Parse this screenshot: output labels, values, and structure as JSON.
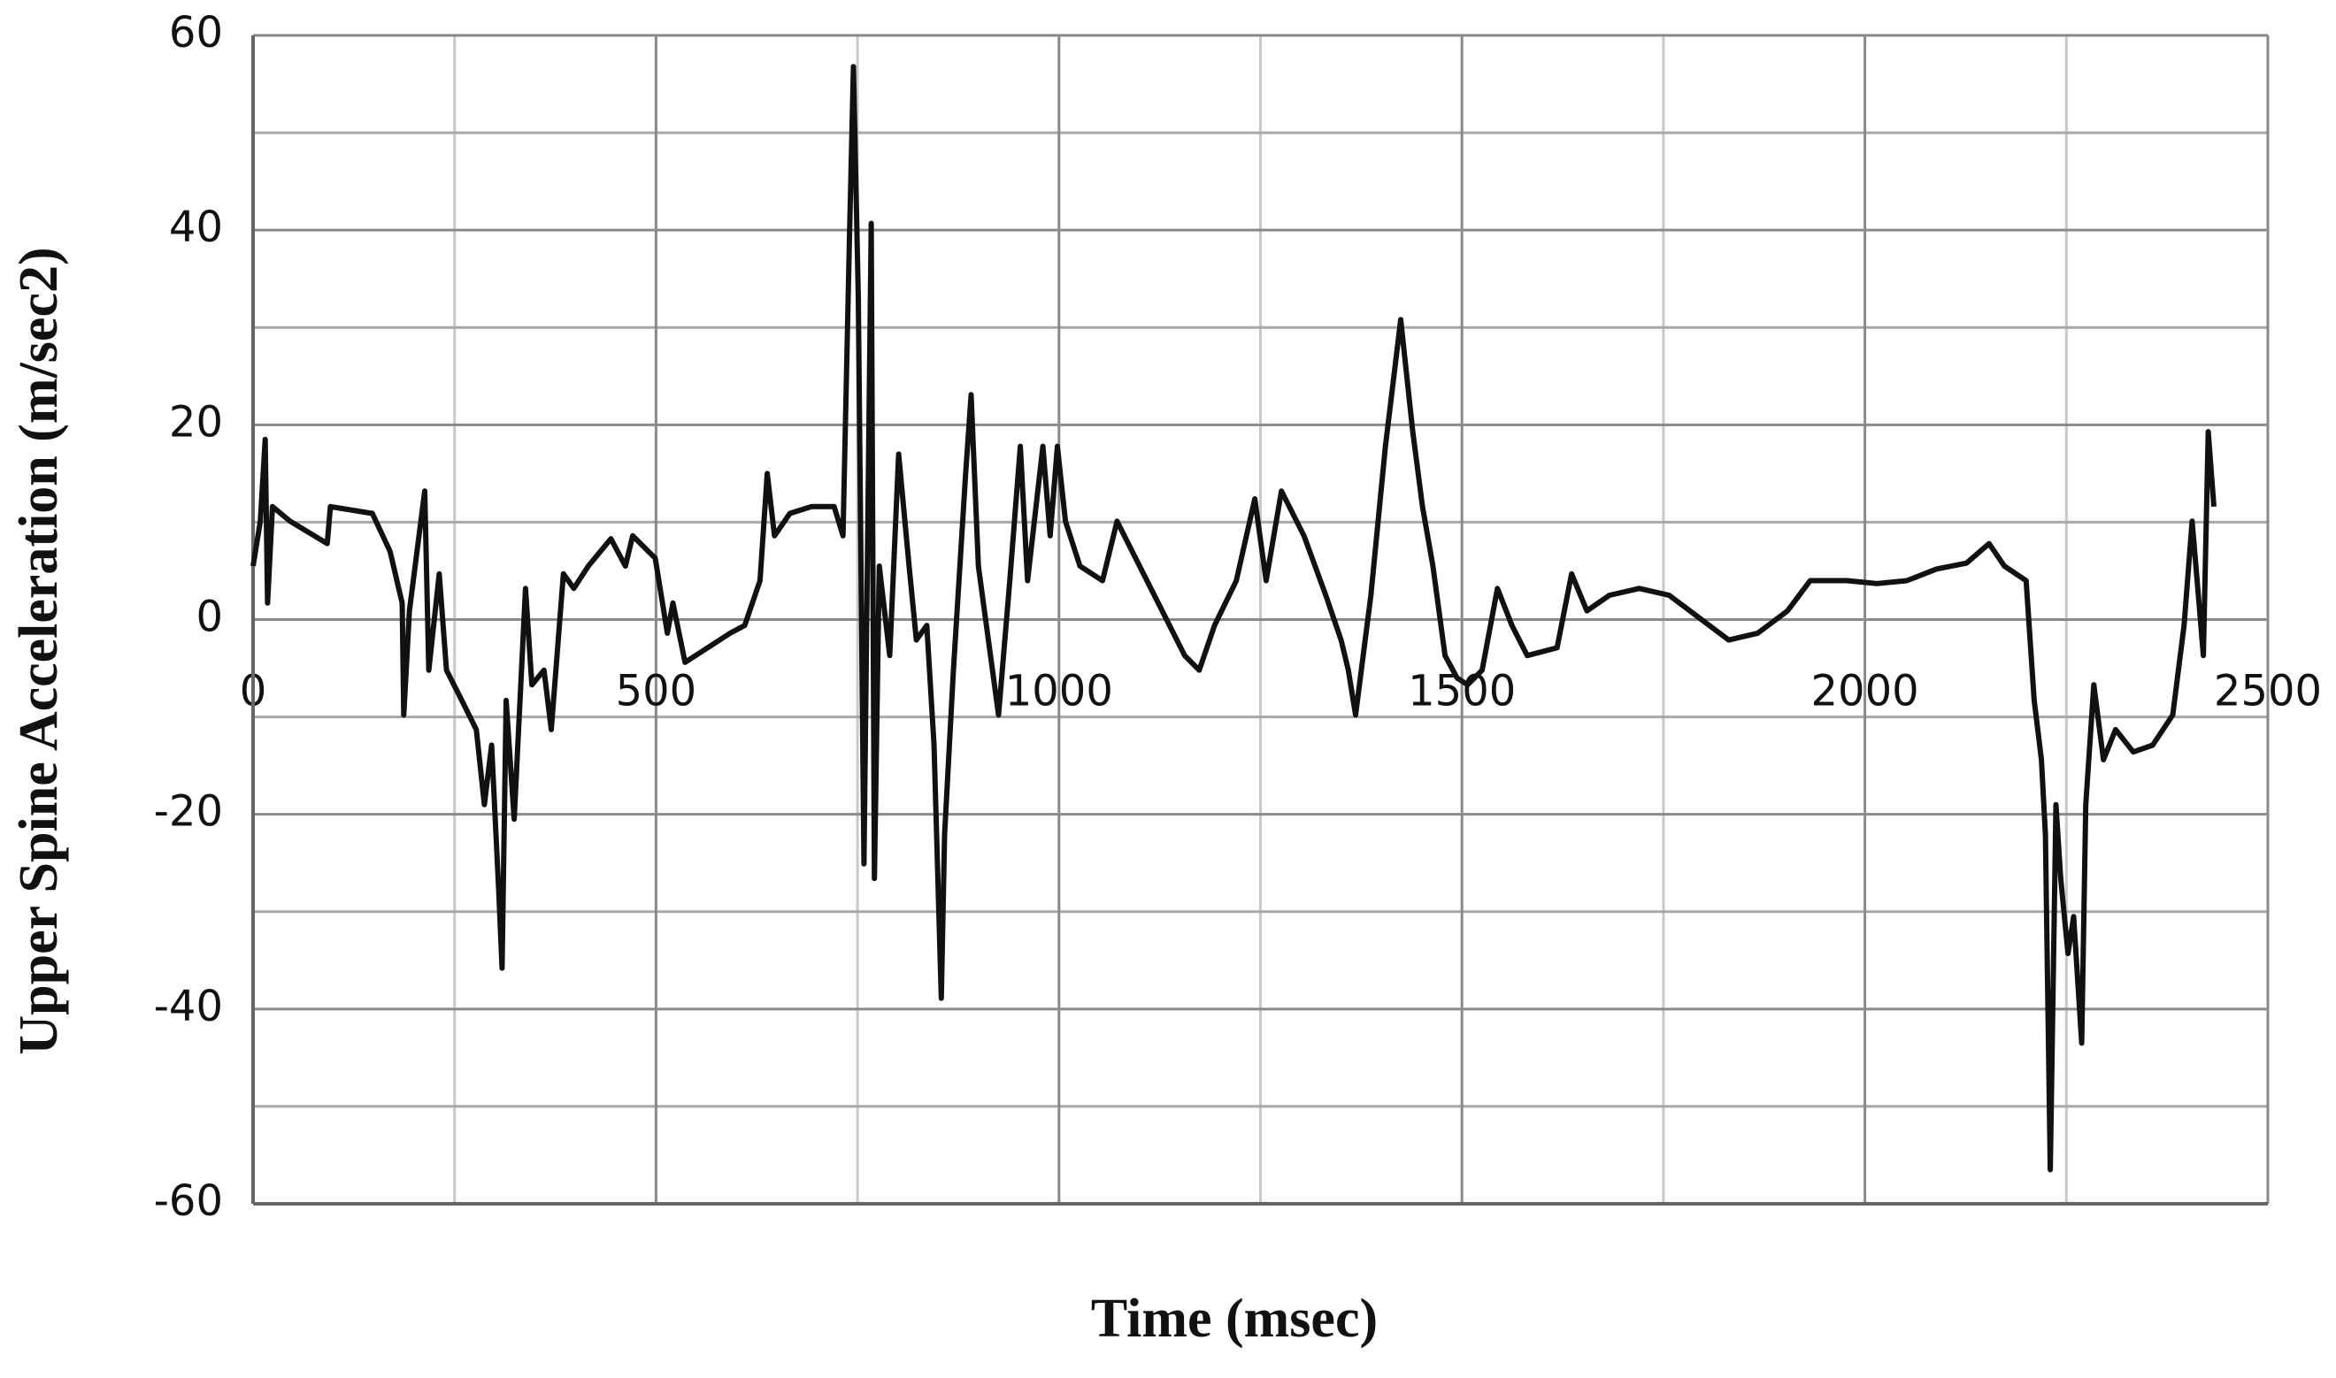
{
  "chart_data": {
    "type": "line",
    "xlabel": "Time (msec)",
    "ylabel": "Upper Spine Acceleration (m/sec2)",
    "xlim": [
      0,
      2500
    ],
    "ylim": [
      -60,
      60
    ],
    "xticks": [
      0,
      500,
      1000,
      1500,
      2000,
      2500
    ],
    "x_minor_ticks": [
      250,
      750,
      1250,
      1750,
      2250
    ],
    "yticks": [
      -60,
      -40,
      -20,
      0,
      20,
      40,
      60
    ],
    "y_minor_ticks": [
      -50,
      -30,
      -10,
      10,
      30,
      50
    ],
    "grid": true,
    "series": [
      {
        "color": "#111111",
        "x": [
          0,
          9,
          15,
          18,
          24,
          46,
          92,
          96,
          148,
          170,
          185,
          187,
          194,
          213,
          218,
          231,
          240,
          259,
          277,
          287,
          296,
          305,
          309,
          314,
          324,
          338,
          346,
          361,
          370,
          385,
          398,
          416,
          444,
          462,
          471,
          499,
          514,
          521,
          536,
          564,
          592,
          610,
          629,
          638,
          647,
          666,
          693,
          721,
          732,
          740,
          745,
          751,
          758,
          767,
          771,
          777,
          790,
          801,
          814,
          823,
          836,
          845,
          854,
          858,
          869,
          884,
          891,
          900,
          915,
          925,
          939,
          952,
          961,
          980,
          989,
          998,
          1008,
          1026,
          1054,
          1072,
          1100,
          1128,
          1156,
          1174,
          1193,
          1220,
          1243,
          1257,
          1276,
          1304,
          1331,
          1350,
          1359,
          1368,
          1387,
          1405,
          1424,
          1439,
          1451,
          1464,
          1479,
          1494,
          1507,
          1525,
          1544,
          1562,
          1581,
          1618,
          1636,
          1655,
          1683,
          1720,
          1757,
          1794,
          1831,
          1867,
          1904,
          1932,
          1978,
          2015,
          2052,
          2089,
          2126,
          2154,
          2173,
          2200,
          2210,
          2219,
          2224,
          2230,
          2237,
          2243,
          2252,
          2259,
          2269,
          2274,
          2284,
          2296,
          2311,
          2333,
          2357,
          2382,
          2396,
          2406,
          2413,
          2420,
          2426,
          2433
        ],
        "values": [
          5.5,
          10.1,
          18.5,
          1.7,
          11.6,
          10.1,
          7.8,
          11.6,
          10.9,
          7.0,
          1.7,
          -9.8,
          0.9,
          13.2,
          -5.2,
          4.7,
          -5.2,
          -8.3,
          -11.3,
          -19.0,
          -12.9,
          -28.2,
          -35.8,
          -8.3,
          -20.5,
          3.2,
          -6.7,
          -5.2,
          -11.3,
          4.7,
          3.2,
          5.5,
          8.3,
          5.5,
          8.6,
          6.3,
          -1.4,
          1.7,
          -4.4,
          -2.9,
          -1.4,
          -0.6,
          4.0,
          15.0,
          8.6,
          10.9,
          11.6,
          11.6,
          8.6,
          39.2,
          56.8,
          33.1,
          -25.1,
          40.7,
          -26.6,
          5.5,
          -3.7,
          17.0,
          5.5,
          -2.1,
          -0.6,
          -12.9,
          -38.9,
          -22.1,
          -5.2,
          14.7,
          23.1,
          5.5,
          -3.7,
          -9.8,
          4.0,
          17.8,
          4.0,
          17.8,
          8.6,
          17.8,
          10.1,
          5.5,
          4.0,
          10.1,
          5.5,
          0.9,
          -3.7,
          -5.2,
          -0.6,
          4.0,
          12.4,
          4.0,
          13.2,
          8.6,
          2.5,
          -2.1,
          -5.2,
          -9.8,
          2.5,
          17.8,
          30.8,
          19.3,
          11.6,
          5.5,
          -3.7,
          -6.0,
          -6.7,
          -5.2,
          3.2,
          -0.6,
          -3.7,
          -2.9,
          4.7,
          0.9,
          2.5,
          3.2,
          2.5,
          0.2,
          -2.1,
          -1.4,
          0.9,
          4.0,
          4.0,
          3.7,
          4.0,
          5.2,
          5.8,
          7.8,
          5.5,
          4.0,
          -8.3,
          -14.4,
          -22.1,
          -56.5,
          -19.0,
          -26.6,
          -34.3,
          -30.5,
          -43.5,
          -19.0,
          -6.7,
          -14.4,
          -11.3,
          -13.6,
          -12.9,
          -9.8,
          -0.6,
          10.1,
          3.2,
          -3.7,
          19.3,
          11.6
        ]
      }
    ]
  }
}
